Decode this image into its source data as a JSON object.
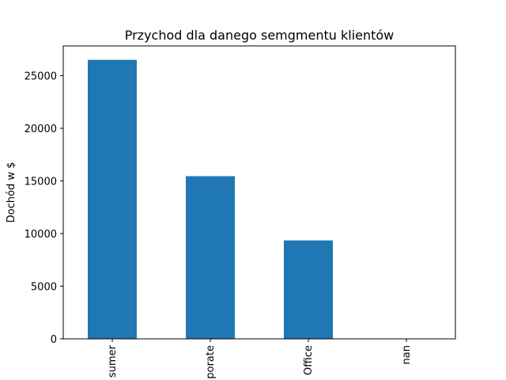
{
  "chart_data": {
    "type": "bar",
    "title": "Przychod dla danego semgmentu klientów",
    "xlabel": "",
    "ylabel": "Dochód w $",
    "categories": [
      "Consumer",
      "Corporate",
      "Home Office",
      "nan"
    ],
    "category_display": [
      "sumer",
      "porate",
      "Office",
      "nan"
    ],
    "values": [
      26500,
      15450,
      9350,
      0
    ],
    "ylim": [
      0,
      27825
    ],
    "yticks": [
      0,
      5000,
      10000,
      15000,
      20000,
      25000
    ],
    "ytick_labels": [
      "0",
      "5000",
      "10000",
      "15000",
      "20000",
      "25000"
    ],
    "bar_color": "#1f77b4",
    "grid": false,
    "legend": "none"
  }
}
